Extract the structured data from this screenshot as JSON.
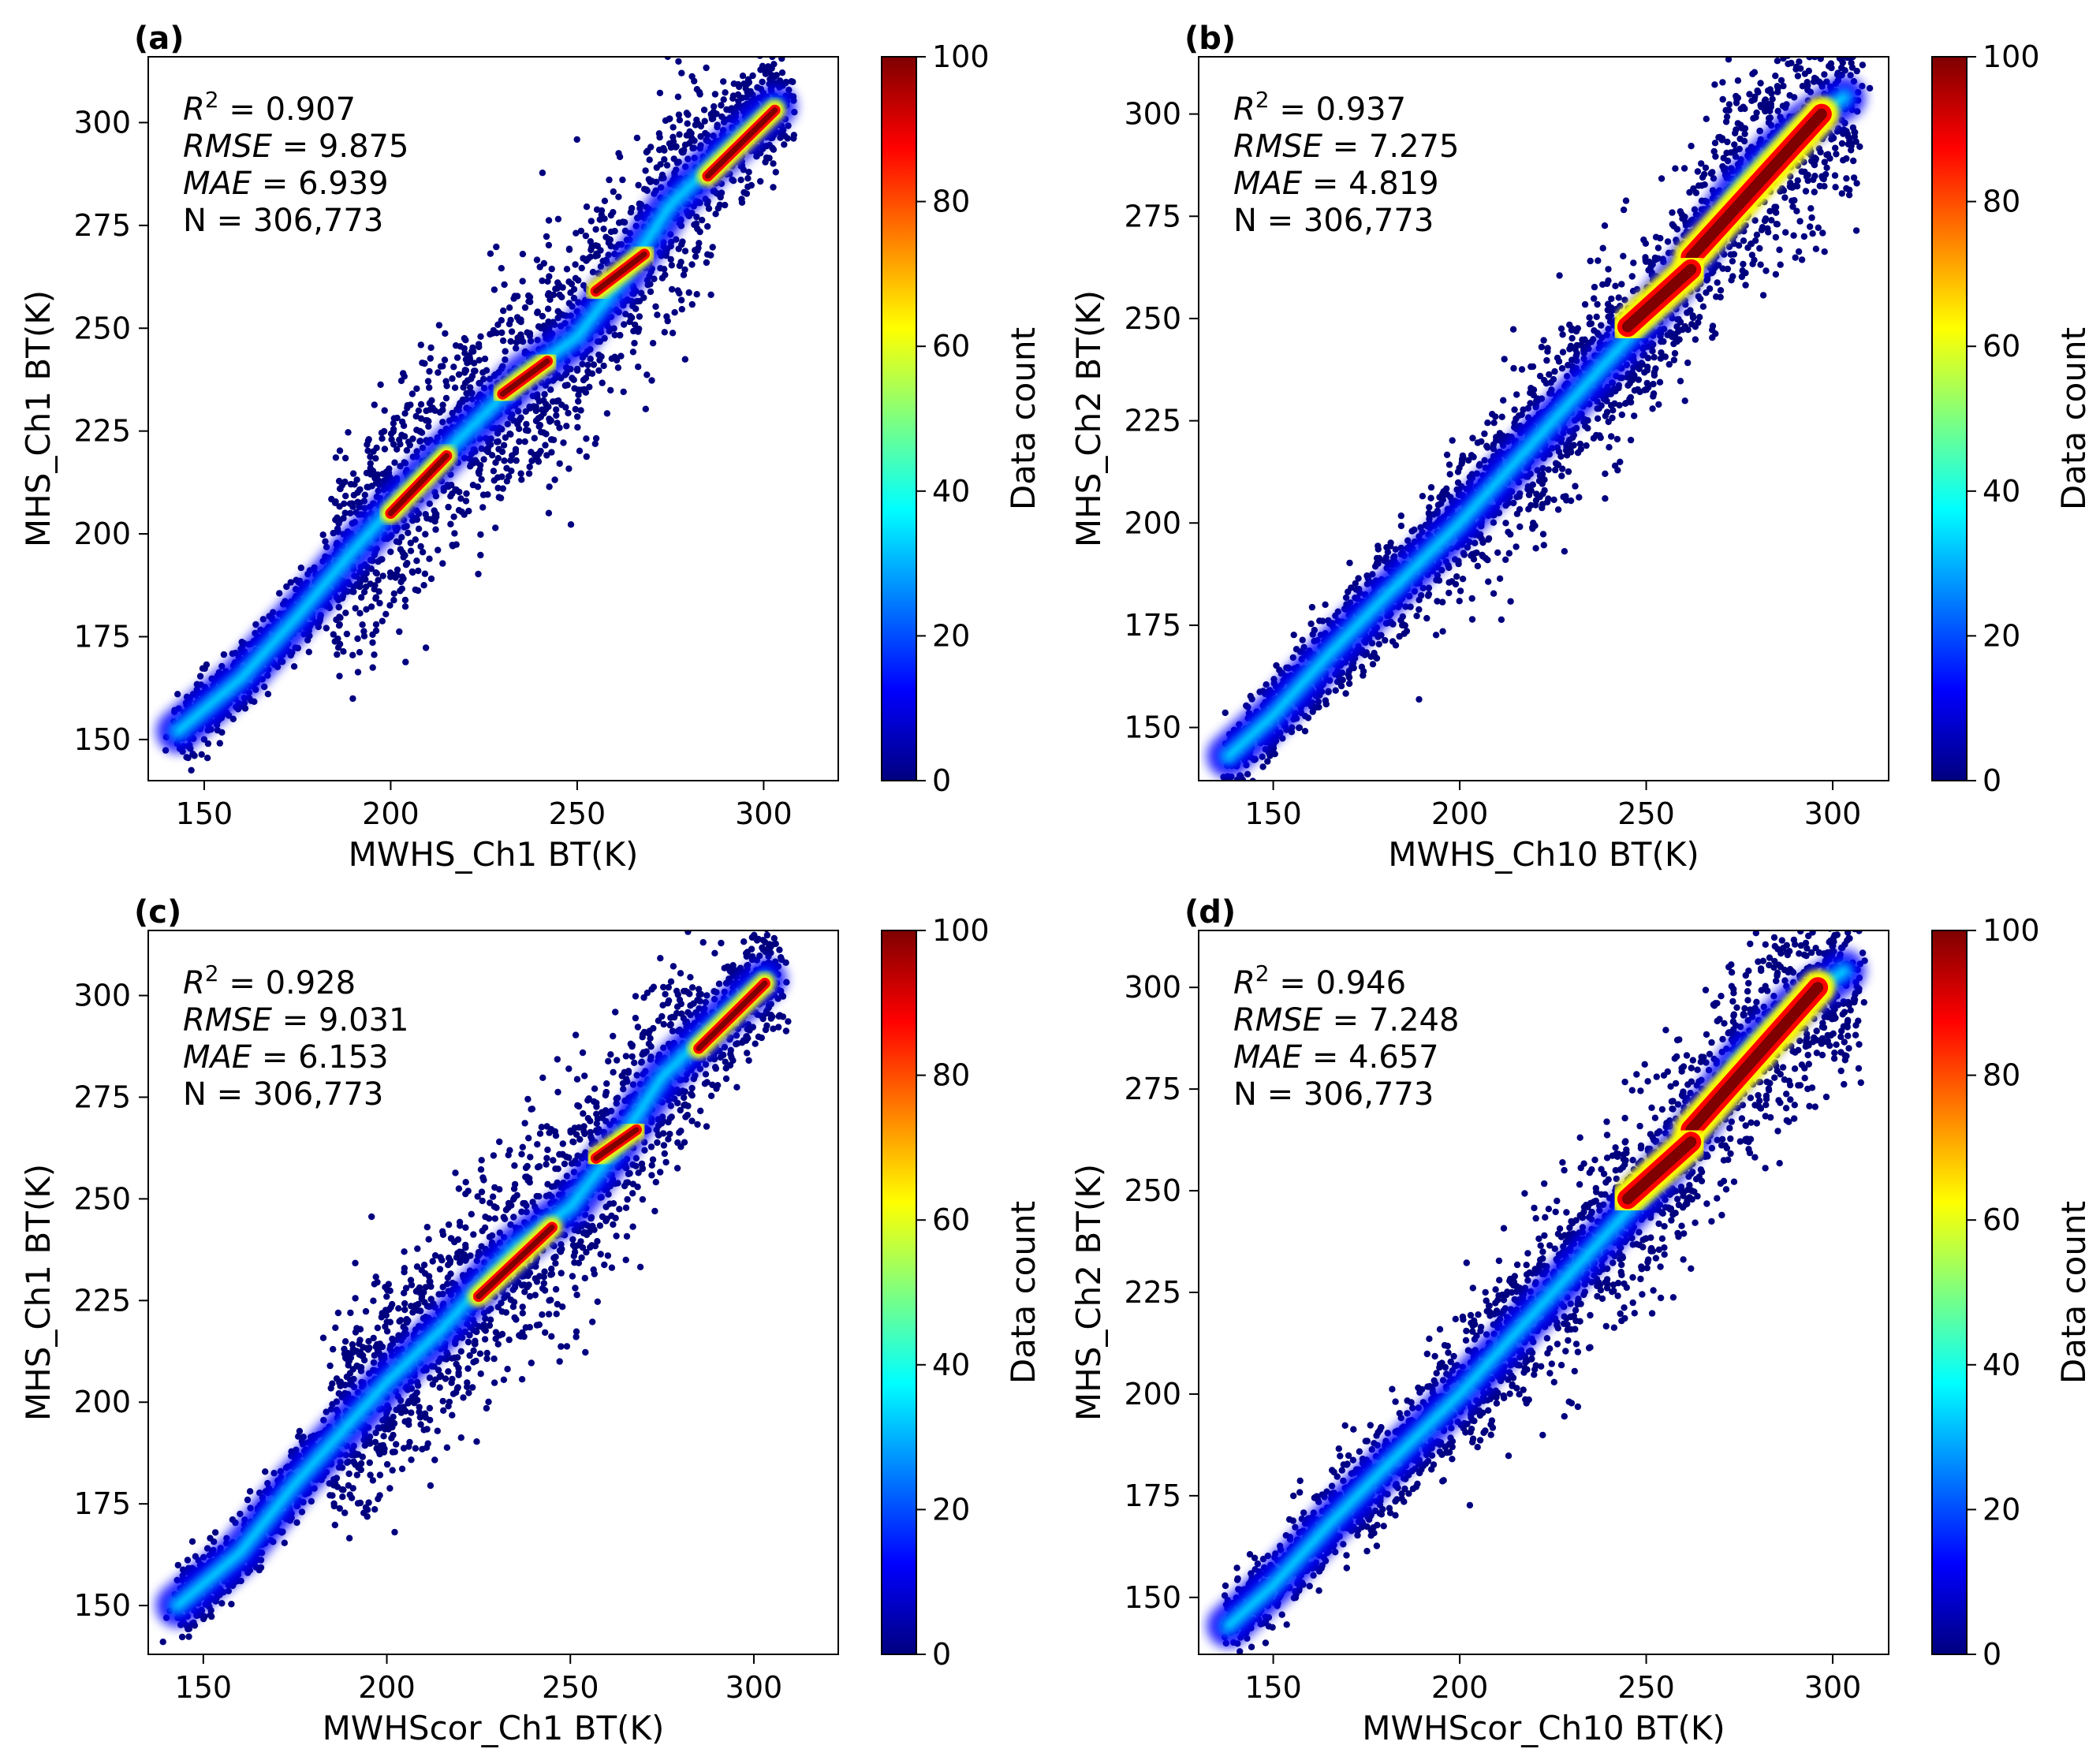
{
  "colormap": [
    "#00007f",
    "#0000ff",
    "#007fff",
    "#00ffff",
    "#7fff7f",
    "#ffff00",
    "#ff7f00",
    "#ff0000",
    "#7f0000"
  ],
  "chart_data": [
    {
      "type": "scatter",
      "panel_label": "(a)",
      "xlabel": "MWHS_Ch1 BT(K)",
      "ylabel": "MHS_Ch1 BT(K)",
      "xlim": [
        135,
        320
      ],
      "ylim": [
        140,
        316
      ],
      "xticks": [
        150,
        200,
        250,
        300
      ],
      "yticks": [
        150,
        175,
        200,
        225,
        250,
        275,
        300
      ],
      "stats": {
        "r2_label": "R",
        "r2_value": "= 0.907",
        "rmse_label": "RMSE",
        "rmse_value": "= 9.875",
        "mae_label": "MAE",
        "mae_value": "= 6.939",
        "n_text": "N = 306,773"
      },
      "colorbar": {
        "label": "Data count",
        "min": 0,
        "max": 100,
        "ticks": [
          0,
          20,
          40,
          60,
          80,
          100
        ]
      },
      "density_ridge": [
        [
          143,
          152
        ],
        [
          160,
          165
        ],
        [
          175,
          180
        ],
        [
          190,
          196
        ],
        [
          200,
          206
        ],
        [
          215,
          220
        ],
        [
          235,
          238
        ],
        [
          250,
          248
        ],
        [
          262,
          262
        ],
        [
          275,
          280
        ],
        [
          292,
          295
        ],
        [
          303,
          304
        ]
      ],
      "hot_segments": [
        [
          [
            285,
            287
          ],
          [
            303,
            303
          ]
        ],
        [
          [
            255,
            259
          ],
          [
            268,
            268
          ]
        ],
        [
          [
            200,
            205
          ],
          [
            215,
            219
          ]
        ],
        [
          [
            230,
            234
          ],
          [
            242,
            242
          ]
        ]
      ]
    },
    {
      "type": "scatter",
      "panel_label": "(b)",
      "xlabel": "MWHS_Ch10 BT(K)",
      "ylabel": "MHS_Ch2 BT(K)",
      "xlim": [
        130,
        315
      ],
      "ylim": [
        137,
        314
      ],
      "xticks": [
        150,
        200,
        250,
        300
      ],
      "yticks": [
        150,
        175,
        200,
        225,
        250,
        275,
        300
      ],
      "stats": {
        "r2_label": "R",
        "r2_value": "= 0.937",
        "rmse_label": "RMSE",
        "rmse_value": "= 7.275",
        "mae_label": "MAE",
        "mae_value": "= 4.819",
        "n_text": "N = 306,773"
      },
      "colorbar": {
        "label": "Data count",
        "min": 0,
        "max": 100,
        "ticks": [
          0,
          20,
          40,
          60,
          80,
          100
        ]
      },
      "density_ridge": [
        [
          138,
          143
        ],
        [
          150,
          153
        ],
        [
          165,
          168
        ],
        [
          180,
          182
        ],
        [
          200,
          200
        ],
        [
          215,
          215
        ],
        [
          235,
          235
        ],
        [
          250,
          250
        ],
        [
          262,
          264
        ],
        [
          275,
          282
        ],
        [
          290,
          296
        ],
        [
          303,
          304
        ]
      ],
      "hot_segments": [
        [
          [
            262,
            265
          ],
          [
            297,
            300
          ]
        ],
        [
          [
            245,
            248
          ],
          [
            262,
            262
          ]
        ]
      ]
    },
    {
      "type": "scatter",
      "panel_label": "(c)",
      "xlabel": "MWHScor_Ch1 BT(K)",
      "ylabel": "MHS_Ch1 BT(K)",
      "xlim": [
        135,
        323
      ],
      "ylim": [
        138,
        316
      ],
      "xticks": [
        150,
        200,
        250,
        300
      ],
      "yticks": [
        150,
        175,
        200,
        225,
        250,
        275,
        300
      ],
      "stats": {
        "r2_label": "R",
        "r2_value": "= 0.928",
        "rmse_label": "RMSE",
        "rmse_value": "= 9.031",
        "mae_label": "MAE",
        "mae_value": "= 6.153",
        "n_text": "N = 306,773"
      },
      "colorbar": {
        "label": "Data count",
        "min": 0,
        "max": 100,
        "ticks": [
          0,
          20,
          40,
          60,
          80,
          100
        ]
      },
      "density_ridge": [
        [
          143,
          150
        ],
        [
          160,
          163
        ],
        [
          175,
          180
        ],
        [
          190,
          195
        ],
        [
          200,
          205
        ],
        [
          215,
          218
        ],
        [
          235,
          238
        ],
        [
          250,
          248
        ],
        [
          262,
          262
        ],
        [
          275,
          280
        ],
        [
          292,
          295
        ],
        [
          303,
          304
        ]
      ],
      "hot_segments": [
        [
          [
            285,
            287
          ],
          [
            303,
            303
          ]
        ],
        [
          [
            257,
            260
          ],
          [
            268,
            267
          ]
        ],
        [
          [
            225,
            226
          ],
          [
            245,
            243
          ]
        ]
      ]
    },
    {
      "type": "scatter",
      "panel_label": "(d)",
      "xlabel": "MWHScor_Ch10 BT(K)",
      "ylabel": "MHS_Ch2 BT(K)",
      "xlim": [
        130,
        315
      ],
      "ylim": [
        136,
        314
      ],
      "xticks": [
        150,
        200,
        250,
        300
      ],
      "yticks": [
        150,
        175,
        200,
        225,
        250,
        275,
        300
      ],
      "stats": {
        "r2_label": "R",
        "r2_value": "= 0.946",
        "rmse_label": "RMSE",
        "rmse_value": "= 7.248",
        "mae_label": "MAE",
        "mae_value": "= 4.657",
        "n_text": "N = 306,773"
      },
      "colorbar": {
        "label": "Data count",
        "min": 0,
        "max": 100,
        "ticks": [
          0,
          20,
          40,
          60,
          80,
          100
        ]
      },
      "density_ridge": [
        [
          138,
          143
        ],
        [
          150,
          153
        ],
        [
          165,
          168
        ],
        [
          180,
          182
        ],
        [
          200,
          200
        ],
        [
          215,
          215
        ],
        [
          235,
          235
        ],
        [
          250,
          250
        ],
        [
          262,
          264
        ],
        [
          275,
          282
        ],
        [
          290,
          296
        ],
        [
          303,
          304
        ]
      ],
      "hot_segments": [
        [
          [
            262,
            265
          ],
          [
            296,
            300
          ]
        ],
        [
          [
            245,
            248
          ],
          [
            262,
            262
          ]
        ]
      ]
    }
  ]
}
